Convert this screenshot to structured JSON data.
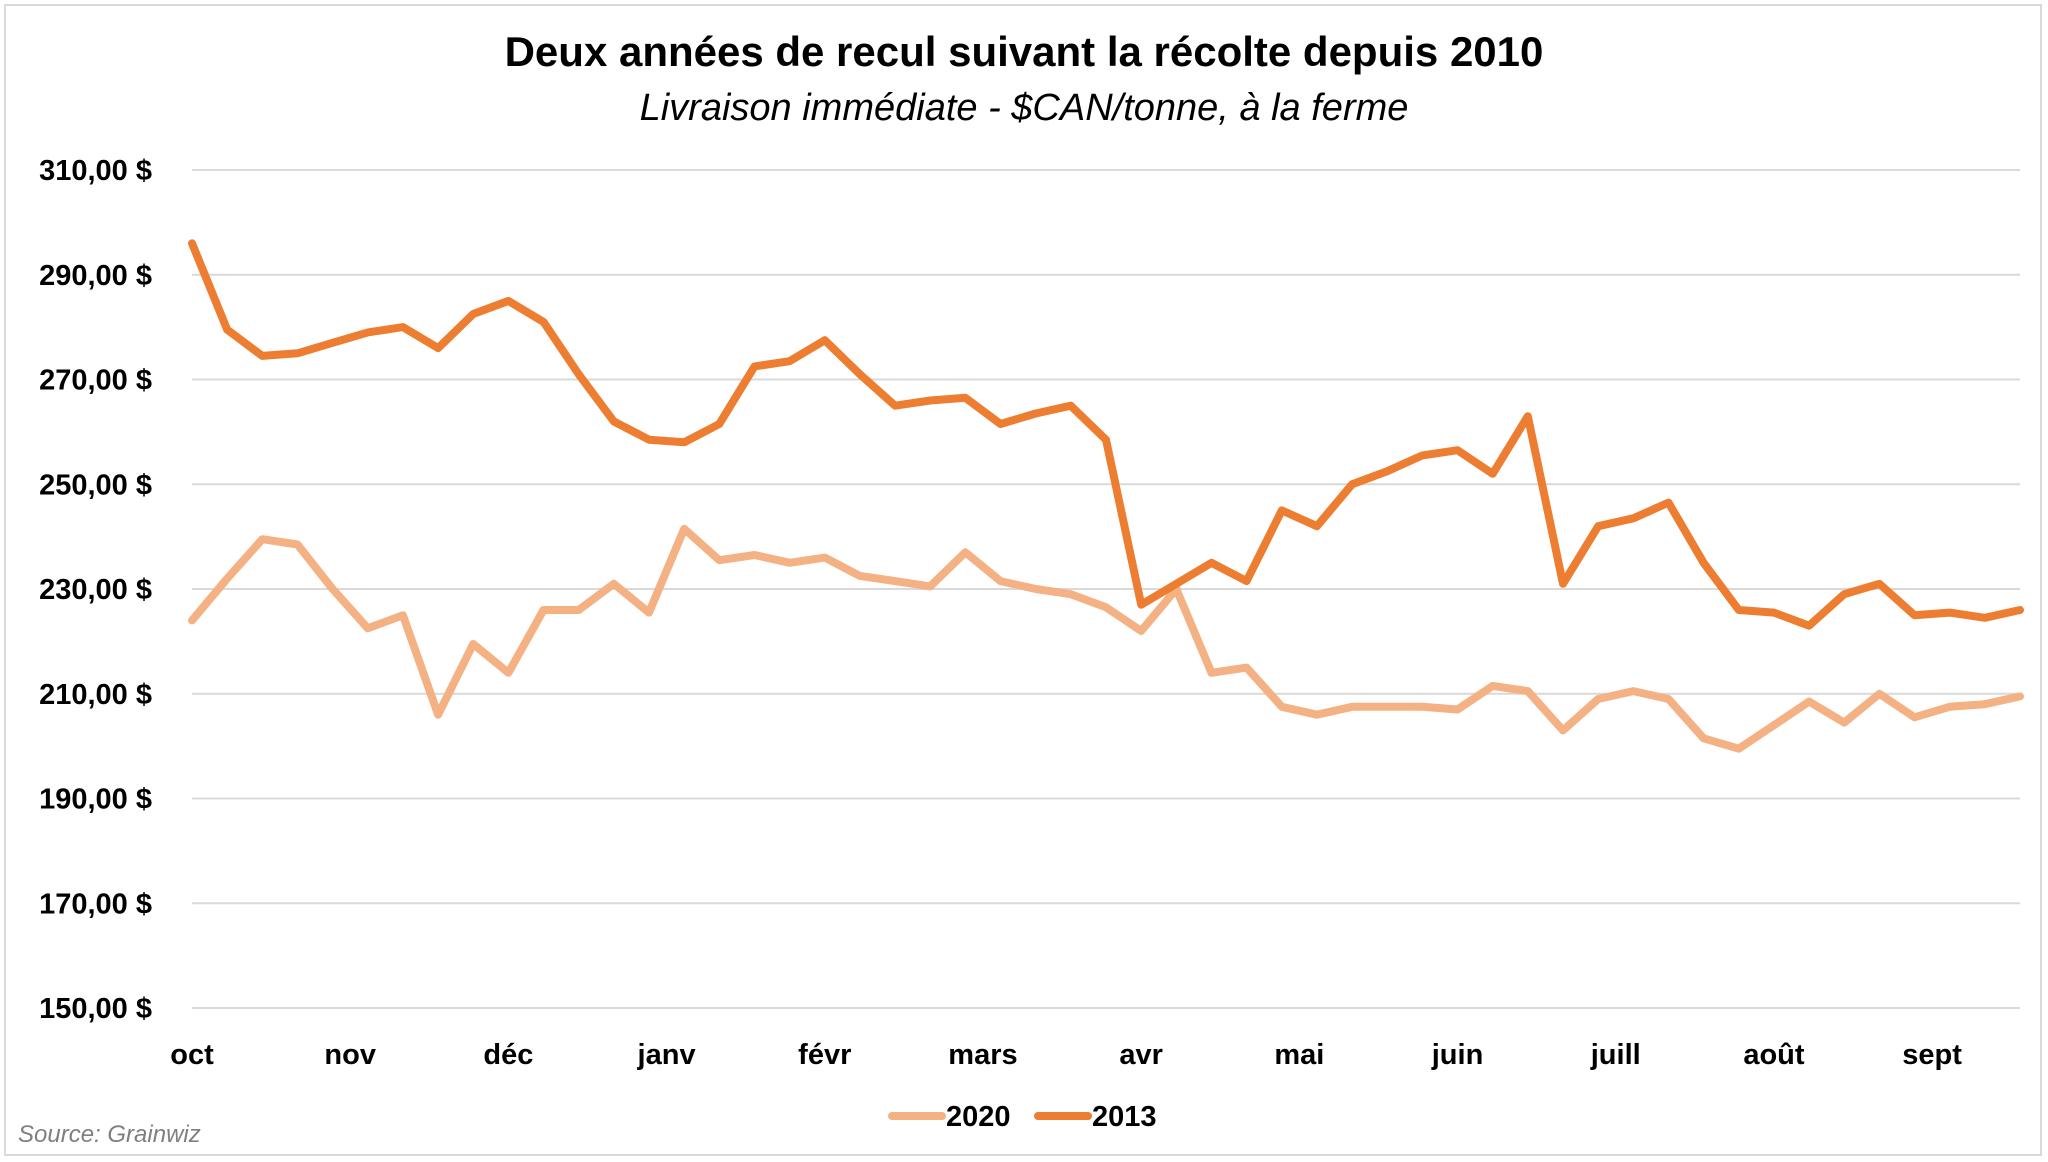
{
  "source": "Source: Grainwiz",
  "chart_data": {
    "type": "line",
    "title": "Deux années de recul suivant la récolte depuis 2010",
    "subtitle": "Livraison immédiate - $CAN/tonne, à la ferme",
    "ylim": [
      150,
      310
    ],
    "yticks": [
      150,
      170,
      190,
      210,
      230,
      250,
      270,
      290,
      310
    ],
    "ytick_labels": [
      "150,00 $",
      "170,00 $",
      "190,00 $",
      "210,00 $",
      "230,00 $",
      "250,00 $",
      "270,00 $",
      "290,00 $",
      "310,00 $"
    ],
    "grid": true,
    "legend_position": "bottom",
    "month_labels": [
      "oct",
      "nov",
      "déc",
      "janv",
      "févr",
      "mars",
      "avr",
      "mai",
      "juin",
      "juill",
      "août",
      "sept"
    ],
    "points_per_month": 4.5,
    "series": [
      {
        "name": "2020",
        "color": "#f4b183",
        "values": [
          224,
          232,
          239.5,
          238.5,
          230,
          222.5,
          225,
          206,
          219.5,
          214,
          226,
          226,
          231,
          225.5,
          241.5,
          235.5,
          236.5,
          235,
          236,
          232.5,
          231.5,
          230.5,
          237,
          231.5,
          230,
          229,
          226.5,
          222,
          230,
          214,
          215,
          207.5,
          206,
          207.5,
          207.5,
          207.5,
          207,
          211.5,
          210.5,
          203,
          209,
          210.5,
          209,
          201.5,
          199.5,
          204,
          208.5,
          204.5,
          210,
          205.5,
          207.5,
          208,
          209.5
        ]
      },
      {
        "name": "2013",
        "color": "#ed7d31",
        "values": [
          296,
          279.5,
          274.5,
          275,
          277,
          279,
          280,
          276,
          282.5,
          285,
          281,
          271,
          262,
          258.5,
          258,
          261.5,
          272.5,
          273.5,
          277.5,
          271,
          265,
          266,
          266.5,
          261.5,
          263.5,
          265,
          258.5,
          227,
          231,
          235,
          231.5,
          245,
          242,
          250,
          252.5,
          255.5,
          256.5,
          252,
          263,
          231,
          242,
          243.5,
          246.5,
          235,
          226,
          225.5,
          223,
          229,
          231,
          225,
          225.5,
          224.5,
          226
        ]
      }
    ]
  }
}
